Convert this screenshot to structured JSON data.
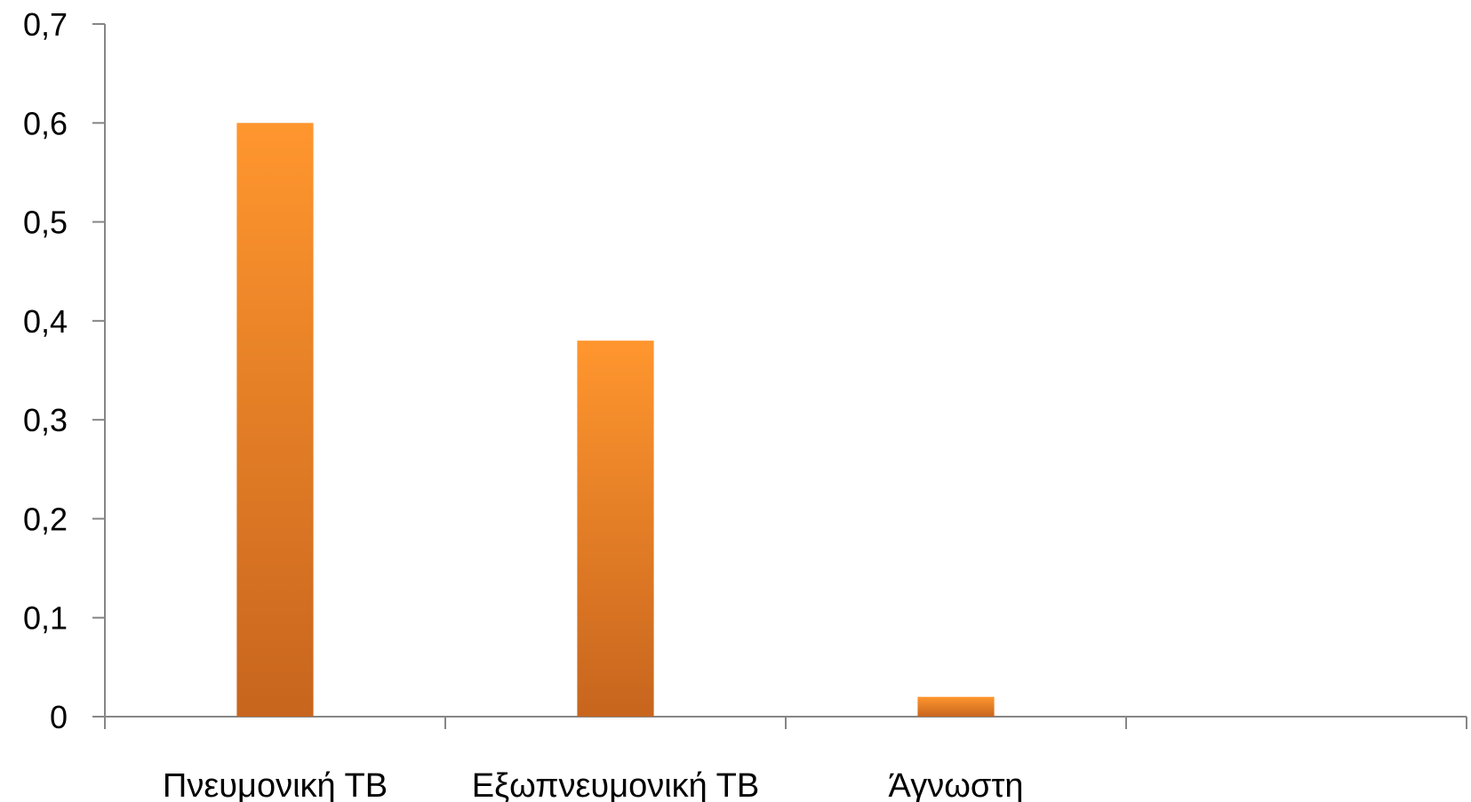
{
  "chart_data": {
    "type": "bar",
    "categories": [
      "Πνευμονική ΤΒ",
      "Εξωπνευμονική ΤΒ",
      "Άγνωστη",
      ""
    ],
    "values": [
      0.6,
      0.38,
      0.02,
      null
    ],
    "y_ticks": [
      "0",
      "0,1",
      "0,2",
      "0,3",
      "0,4",
      "0,5",
      "0,6",
      "0,7"
    ],
    "ylim": [
      0,
      0.7
    ],
    "grid": false,
    "legend": "none",
    "colors": {
      "bar_top": "#FF962E",
      "bar_bottom": "#C7651E",
      "axis": "#868686"
    }
  }
}
